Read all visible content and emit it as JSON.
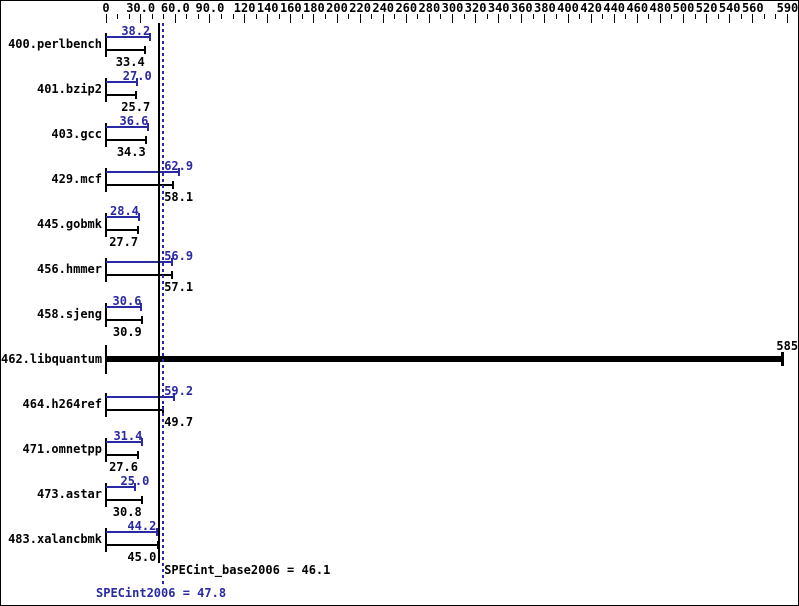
{
  "window": {
    "background": "#ffffff",
    "border_color": "#000000"
  },
  "colors": {
    "peak": "#2929a3",
    "base": "#000000"
  },
  "chart_data": {
    "type": "bar",
    "orientation": "horizontal",
    "title": "",
    "xlabel": "",
    "ylabel": "",
    "legend_position": "none",
    "grid": false,
    "axis": {
      "min": 0,
      "max": 590,
      "minor_tick_step": 10,
      "labeled_ticks": [
        {
          "value": 0,
          "label": "0"
        },
        {
          "value": 30,
          "label": "30.0"
        },
        {
          "value": 60,
          "label": "60.0"
        },
        {
          "value": 90,
          "label": "90.0"
        },
        {
          "value": 120,
          "label": "120"
        },
        {
          "value": 140,
          "label": "140"
        },
        {
          "value": 160,
          "label": "160"
        },
        {
          "value": 180,
          "label": "180"
        },
        {
          "value": 200,
          "label": "200"
        },
        {
          "value": 220,
          "label": "220"
        },
        {
          "value": 240,
          "label": "240"
        },
        {
          "value": 260,
          "label": "260"
        },
        {
          "value": 280,
          "label": "280"
        },
        {
          "value": 300,
          "label": "300"
        },
        {
          "value": 320,
          "label": "320"
        },
        {
          "value": 340,
          "label": "340"
        },
        {
          "value": 360,
          "label": "360"
        },
        {
          "value": 380,
          "label": "380"
        },
        {
          "value": 400,
          "label": "400"
        },
        {
          "value": 420,
          "label": "420"
        },
        {
          "value": 440,
          "label": "440"
        },
        {
          "value": 460,
          "label": "460"
        },
        {
          "value": 480,
          "label": "480"
        },
        {
          "value": 500,
          "label": "500"
        },
        {
          "value": 520,
          "label": "520"
        },
        {
          "value": 540,
          "label": "540"
        },
        {
          "value": 560,
          "label": "560"
        },
        {
          "value": 590,
          "label": "590"
        }
      ]
    },
    "series_names": {
      "peak": "SPECint2006",
      "base": "SPECint_base2006"
    },
    "benchmarks": [
      {
        "name": "400.perlbench",
        "peak": 38.2,
        "peak_label": "38.2",
        "base": 33.4,
        "base_label": "33.4"
      },
      {
        "name": "401.bzip2",
        "peak": 27.0,
        "peak_label": "27.0",
        "base": 25.7,
        "base_label": "25.7"
      },
      {
        "name": "403.gcc",
        "peak": 36.6,
        "peak_label": "36.6",
        "base": 34.3,
        "base_label": "34.3"
      },
      {
        "name": "429.mcf",
        "peak": 62.9,
        "peak_label": "62.9",
        "base": 58.1,
        "base_label": "58.1"
      },
      {
        "name": "445.gobmk",
        "peak": 28.4,
        "peak_label": "28.4",
        "base": 27.7,
        "base_label": "27.7"
      },
      {
        "name": "456.hmmer",
        "peak": 56.9,
        "peak_label": "56.9",
        "base": 57.1,
        "base_label": "57.1"
      },
      {
        "name": "458.sjeng",
        "peak": 30.6,
        "peak_label": "30.6",
        "base": 30.9,
        "base_label": "30.9"
      },
      {
        "name": "462.libquantum",
        "merged": true,
        "peak": 585,
        "base": 585,
        "value_label": "585"
      },
      {
        "name": "464.h264ref",
        "peak": 59.2,
        "peak_label": "59.2",
        "base": 49.7,
        "base_label": "49.7"
      },
      {
        "name": "471.omnetpp",
        "peak": 31.4,
        "peak_label": "31.4",
        "base": 27.6,
        "base_label": "27.6"
      },
      {
        "name": "473.astar",
        "peak": 25.0,
        "peak_label": "25.0",
        "base": 30.8,
        "base_label": "30.8"
      },
      {
        "name": "483.xalancbmk",
        "peak": 44.2,
        "peak_label": "44.2",
        "base": 45.0,
        "base_label": "45.0"
      }
    ],
    "reference_lines": [
      {
        "name": "SPECint_base2006",
        "value": 46.1,
        "style": "solid",
        "color": "#000000"
      },
      {
        "name": "SPECint2006",
        "value": 47.8,
        "style": "dotted",
        "color": "#2929a3"
      }
    ],
    "summary": {
      "base_label": "SPECint_base2006 = 46.1",
      "peak_label": "SPECint2006 = 47.8"
    }
  }
}
